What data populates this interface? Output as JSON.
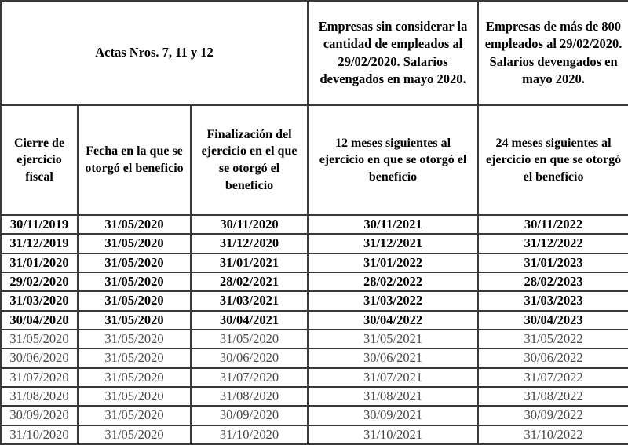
{
  "colors": {
    "border": "#3a3a3a",
    "bold_row_text": "#000000",
    "normal_row_text": "#474747",
    "background": "#ffffff"
  },
  "table": {
    "top_header": {
      "actas_label": "Actas Nros. 7, 11 y 12",
      "empresas_general": "Empresas sin considerar la cantidad de empleados al 29/02/2020. Salarios devengados en mayo 2020.",
      "empresas_800": "Empresas de más de 800 empleados al 29/02/2020. Salarios devengados en mayo 2020."
    },
    "column_headers": [
      "Cierre de ejercicio fiscal",
      "Fecha en la que se otorgó el beneficio",
      "Finalización del ejercicio en el que se otorgó el beneficio",
      "12 meses siguientes al ejercicio en que se otorgó el beneficio",
      "24 meses siguientes al ejercicio en que se otorgó el beneficio"
    ],
    "rows": [
      {
        "bold": true,
        "cells": [
          "30/11/2019",
          "31/05/2020",
          "30/11/2020",
          "30/11/2021",
          "30/11/2022"
        ]
      },
      {
        "bold": true,
        "cells": [
          "31/12/2019",
          "31/05/2020",
          "31/12/2020",
          "31/12/2021",
          "31/12/2022"
        ]
      },
      {
        "bold": true,
        "cells": [
          "31/01/2020",
          "31/05/2020",
          "31/01/2021",
          "31/01/2022",
          "31/01/2023"
        ]
      },
      {
        "bold": true,
        "cells": [
          "29/02/2020",
          "31/05/2020",
          "28/02/2021",
          "28/02/2022",
          "28/02/2023"
        ]
      },
      {
        "bold": true,
        "cells": [
          "31/03/2020",
          "31/05/2020",
          "31/03/2021",
          "31/03/2022",
          "31/03/2023"
        ]
      },
      {
        "bold": true,
        "cells": [
          "30/04/2020",
          "31/05/2020",
          "30/04/2021",
          "30/04/2022",
          "30/04/2023"
        ]
      },
      {
        "bold": false,
        "cells": [
          "31/05/2020",
          "31/05/2020",
          "31/05/2020",
          "31/05/2021",
          "31/05/2022"
        ]
      },
      {
        "bold": false,
        "cells": [
          "30/06/2020",
          "31/05/2020",
          "30/06/2020",
          "30/06/2021",
          "30/06/2022"
        ]
      },
      {
        "bold": false,
        "cells": [
          "31/07/2020",
          "31/05/2020",
          "31/07/2020",
          "31/07/2021",
          "31/07/2022"
        ]
      },
      {
        "bold": false,
        "cells": [
          "31/08/2020",
          "31/05/2020",
          "31/08/2020",
          "31/08/2021",
          "31/08/2022"
        ]
      },
      {
        "bold": false,
        "cells": [
          "30/09/2020",
          "31/05/2020",
          "30/09/2020",
          "30/09/2021",
          "30/09/2022"
        ]
      },
      {
        "bold": false,
        "cells": [
          "31/10/2020",
          "31/05/2020",
          "31/10/2020",
          "31/10/2021",
          "31/10/2022"
        ]
      }
    ]
  }
}
